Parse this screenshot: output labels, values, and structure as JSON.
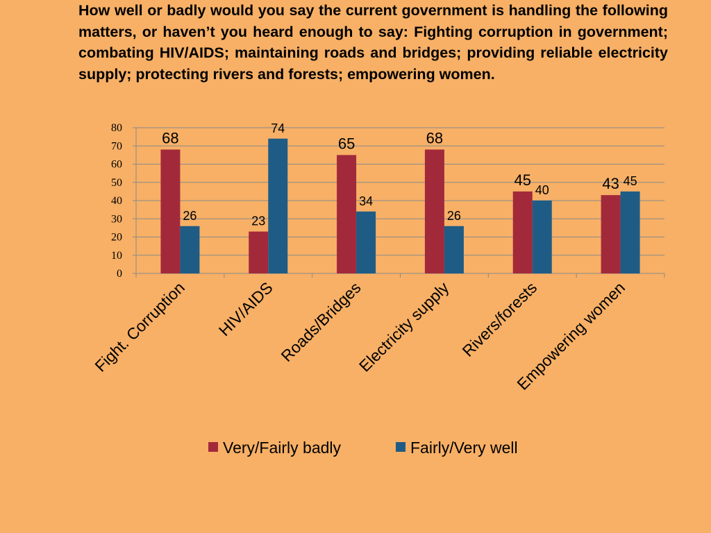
{
  "question": "How well or badly would you say the current government is handling the following matters, or haven’t you heard enough to say: Fighting corruption in government; combating HIV/AIDS; maintaining roads and bridges; providing reliable electricity supply; protecting rivers and forests; empowering women.",
  "chart_data": {
    "type": "bar",
    "title": "",
    "xlabel": "",
    "ylabel": "",
    "categories": [
      "Fight. Corruption",
      "HIV/AIDS",
      "Roads/Bridges",
      "Electricity supply",
      "Rivers/forests",
      "Empowering women"
    ],
    "series": [
      {
        "name": "Very/Fairly badly",
        "values": [
          68,
          23,
          65,
          68,
          45,
          43
        ],
        "color": "#A2293A"
      },
      {
        "name": "Fairly/Very well",
        "values": [
          26,
          74,
          34,
          26,
          40,
          45
        ],
        "color": "#1F5C85"
      }
    ],
    "ylim": [
      0,
      80
    ],
    "yticks": [
      "0",
      "10",
      "20",
      "30",
      "40",
      "50",
      "60",
      "70",
      "80"
    ],
    "grid": true,
    "legend_position": "bottom"
  }
}
